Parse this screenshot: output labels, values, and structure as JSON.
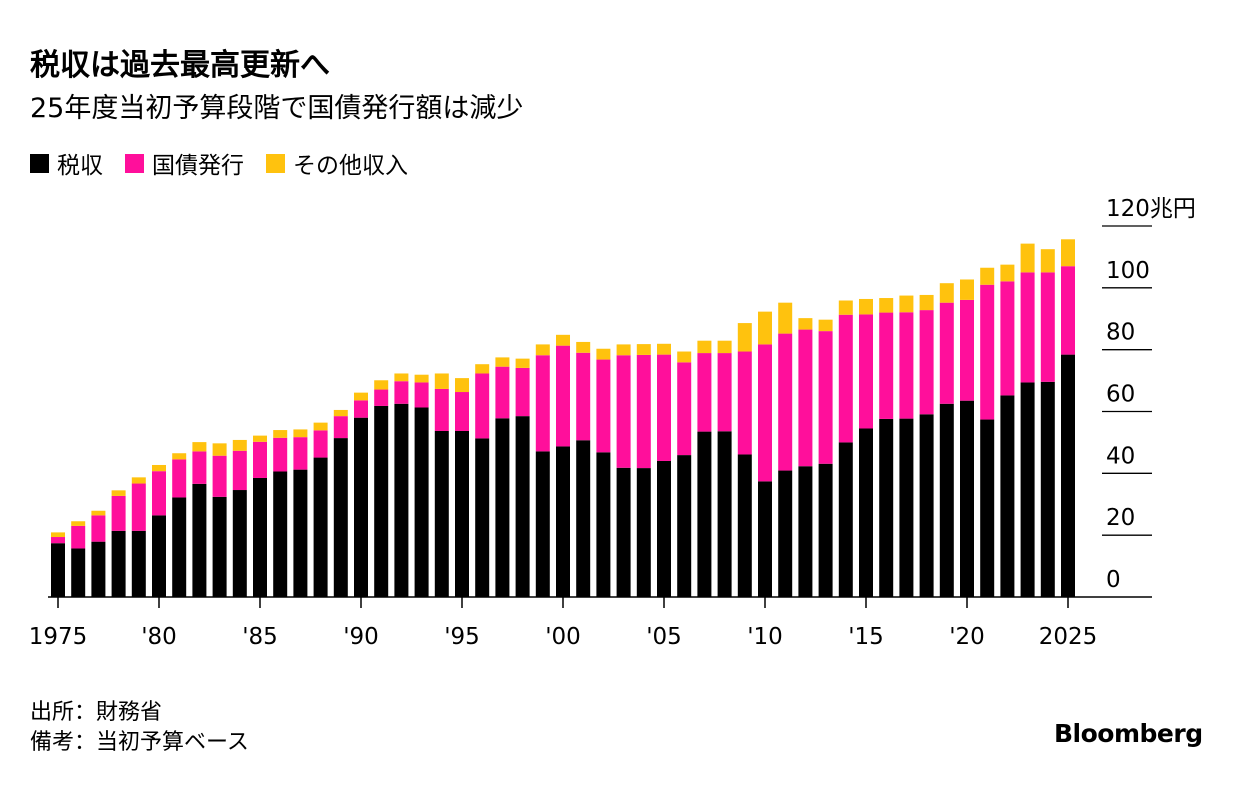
{
  "header": {
    "title": "税収は過去最高更新へ",
    "subtitle": "25年度当初予算段階で国債発行額は減少"
  },
  "footer": {
    "source": "出所：財務省",
    "note": "備考：当初予算ベース",
    "brand": "Bloomberg"
  },
  "colors": {
    "tax": "#000000",
    "bonds": "#ff0f9b",
    "other": "#ffc20e",
    "gridline": "#000000"
  },
  "chart_data": {
    "type": "bar",
    "stacked": true,
    "title": "税収は過去最高更新へ",
    "subtitle": "25年度当初予算段階で国債発行額は減少",
    "unit_label": "120兆円",
    "ylim": [
      0,
      120
    ],
    "yticks": [
      0,
      20,
      40,
      60,
      80,
      100,
      120
    ],
    "ytick_labels": [
      "0",
      "20",
      "40",
      "60",
      "80",
      "100",
      "120兆円"
    ],
    "xtick_labels": [
      {
        "year": 1975,
        "label": "1975"
      },
      {
        "year": 1980,
        "label": "'80"
      },
      {
        "year": 1985,
        "label": "'85"
      },
      {
        "year": 1990,
        "label": "'90"
      },
      {
        "year": 1995,
        "label": "'95"
      },
      {
        "year": 2000,
        "label": "'00"
      },
      {
        "year": 2005,
        "label": "'05"
      },
      {
        "year": 2010,
        "label": "'10"
      },
      {
        "year": 2015,
        "label": "'15"
      },
      {
        "year": 2020,
        "label": "'20"
      },
      {
        "year": 2025,
        "label": "2025"
      }
    ],
    "legend_position": "top-left",
    "years": [
      1975,
      1976,
      1977,
      1978,
      1979,
      1980,
      1981,
      1982,
      1983,
      1984,
      1985,
      1986,
      1987,
      1988,
      1989,
      1990,
      1991,
      1992,
      1993,
      1994,
      1995,
      1996,
      1997,
      1998,
      1999,
      2000,
      2001,
      2002,
      2003,
      2004,
      2005,
      2006,
      2007,
      2008,
      2009,
      2010,
      2011,
      2012,
      2013,
      2014,
      2015,
      2016,
      2017,
      2018,
      2019,
      2020,
      2021,
      2022,
      2023,
      2024,
      2025
    ],
    "series": [
      {
        "key": "tax",
        "name": "税収",
        "color": "#000000",
        "values": [
          17.4,
          15.7,
          17.9,
          21.4,
          21.4,
          26.4,
          32.2,
          36.6,
          32.4,
          34.6,
          38.5,
          40.6,
          41.2,
          45.1,
          51.4,
          58.0,
          61.8,
          62.5,
          61.3,
          53.7,
          53.7,
          51.3,
          57.8,
          58.5,
          47.1,
          48.7,
          50.7,
          46.8,
          41.8,
          41.7,
          44.0,
          45.9,
          53.5,
          53.6,
          46.1,
          37.4,
          40.9,
          42.3,
          43.1,
          50.0,
          54.5,
          57.6,
          57.7,
          59.1,
          62.5,
          63.5,
          57.4,
          65.2,
          69.4,
          69.6,
          78.4
        ]
      },
      {
        "key": "bonds",
        "name": "国債発行",
        "color": "#ff0f9b",
        "values": [
          2.0,
          7.3,
          8.5,
          11.3,
          15.3,
          14.3,
          12.3,
          10.5,
          13.3,
          12.7,
          11.7,
          10.9,
          10.5,
          8.8,
          7.1,
          5.6,
          5.3,
          7.3,
          8.1,
          13.6,
          12.6,
          21.0,
          16.7,
          15.6,
          31.1,
          32.6,
          28.3,
          30.0,
          36.4,
          36.6,
          34.4,
          30.0,
          25.4,
          25.3,
          33.3,
          44.3,
          44.3,
          44.2,
          42.9,
          41.3,
          36.9,
          34.4,
          34.4,
          33.7,
          32.7,
          32.6,
          43.6,
          36.9,
          35.6,
          35.4,
          28.6
        ]
      },
      {
        "key": "other",
        "name": "その他収入",
        "color": "#ffc20e",
        "values": [
          1.5,
          1.5,
          1.5,
          1.8,
          2.0,
          2.0,
          2.0,
          3.0,
          4.0,
          3.5,
          2.0,
          2.5,
          2.5,
          2.5,
          2.0,
          2.5,
          3.0,
          2.5,
          2.5,
          5.0,
          4.5,
          3.0,
          3.0,
          3.0,
          3.5,
          3.5,
          3.5,
          3.5,
          3.5,
          3.5,
          3.5,
          3.5,
          4.0,
          4.0,
          9.2,
          10.6,
          10.0,
          3.7,
          3.7,
          4.6,
          5.0,
          4.7,
          5.4,
          4.9,
          6.3,
          6.6,
          5.5,
          5.4,
          9.3,
          7.5,
          8.7
        ]
      }
    ]
  }
}
